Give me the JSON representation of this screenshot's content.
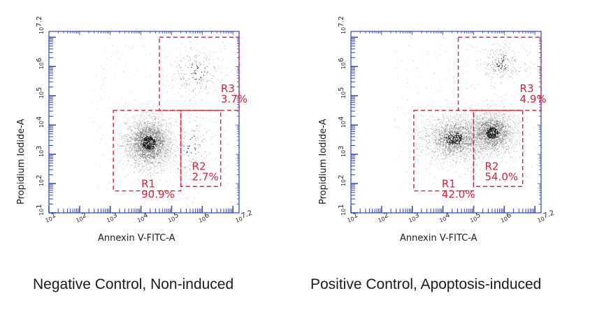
{
  "chart_data": [
    {
      "type": "scatter",
      "caption": "Negative Control, Non-induced",
      "xlabel": "Annexin V-FITC-A",
      "ylabel": "Propidium Iodide-A",
      "xlim": [
        1,
        7.2
      ],
      "ylim": [
        1,
        7.2
      ],
      "x_scale": "log",
      "y_scale": "log",
      "x_ticks": [
        {
          "base": "10",
          "exp": "1"
        },
        {
          "base": "10",
          "exp": "2"
        },
        {
          "base": "10",
          "exp": "3"
        },
        {
          "base": "10",
          "exp": "4"
        },
        {
          "base": "10",
          "exp": "5"
        },
        {
          "base": "10",
          "exp": "6"
        },
        {
          "base": "10",
          "exp": "7.2"
        }
      ],
      "y_ticks": [
        {
          "base": "10",
          "exp": "1"
        },
        {
          "base": "10",
          "exp": "2"
        },
        {
          "base": "10",
          "exp": "3"
        },
        {
          "base": "10",
          "exp": "4"
        },
        {
          "base": "10",
          "exp": "5"
        },
        {
          "base": "10",
          "exp": "6"
        },
        {
          "base": "10",
          "exp": "7.2"
        }
      ],
      "grid": false,
      "point_color": "#6e6e6e",
      "axis_color": "#2a3fd6",
      "gate_color": "#d8203a",
      "gates": [
        {
          "name": "R1",
          "value": "90.9%",
          "x_range": [
            3.1,
            5.3
          ],
          "y_range": [
            1.75,
            4.5
          ]
        },
        {
          "name": "R2",
          "value": "2.7%",
          "x_range": [
            5.3,
            6.6
          ],
          "y_range": [
            1.9,
            4.5
          ]
        },
        {
          "name": "R3",
          "value": "3.7%",
          "x_range": [
            4.6,
            7.2
          ],
          "y_range": [
            4.5,
            7.0
          ]
        }
      ],
      "populations": [
        {
          "cx": 4.25,
          "cy": 3.4,
          "sx": 0.42,
          "sy": 0.45,
          "n": 2600
        },
        {
          "cx": 5.6,
          "cy": 3.3,
          "sx": 0.42,
          "sy": 0.7,
          "n": 200
        },
        {
          "cx": 5.8,
          "cy": 5.8,
          "sx": 0.55,
          "sy": 0.55,
          "n": 240
        }
      ]
    },
    {
      "type": "scatter",
      "caption": "Positive Control, Apoptosis-induced",
      "xlabel": "Annexin V-FITC-A",
      "ylabel": "Propidium Iodide-A",
      "xlim": [
        1,
        7.2
      ],
      "ylim": [
        1,
        7.2
      ],
      "x_scale": "log",
      "y_scale": "log",
      "x_ticks": [
        {
          "base": "10",
          "exp": "1"
        },
        {
          "base": "10",
          "exp": "2"
        },
        {
          "base": "10",
          "exp": "3"
        },
        {
          "base": "10",
          "exp": "4"
        },
        {
          "base": "10",
          "exp": "5"
        },
        {
          "base": "10",
          "exp": "6"
        },
        {
          "base": "10",
          "exp": "7.2"
        }
      ],
      "y_ticks": [
        {
          "base": "10",
          "exp": "1"
        },
        {
          "base": "10",
          "exp": "2"
        },
        {
          "base": "10",
          "exp": "3"
        },
        {
          "base": "10",
          "exp": "4"
        },
        {
          "base": "10",
          "exp": "5"
        },
        {
          "base": "10",
          "exp": "6"
        },
        {
          "base": "10",
          "exp": "7.2"
        }
      ],
      "grid": false,
      "point_color": "#6e6e6e",
      "axis_color": "#2a3fd6",
      "gate_color": "#d8203a",
      "gates": [
        {
          "name": "R1",
          "value": "42.0%",
          "x_range": [
            3.05,
            5.0
          ],
          "y_range": [
            1.75,
            4.5
          ]
        },
        {
          "name": "R2",
          "value": "54.0%",
          "x_range": [
            5.0,
            6.6
          ],
          "y_range": [
            1.9,
            4.5
          ]
        },
        {
          "name": "R3",
          "value": "4.9%",
          "x_range": [
            4.5,
            7.2
          ],
          "y_range": [
            4.5,
            7.0
          ]
        }
      ],
      "populations": [
        {
          "cx": 4.35,
          "cy": 3.55,
          "sx": 0.55,
          "sy": 0.42,
          "n": 1700
        },
        {
          "cx": 5.6,
          "cy": 3.75,
          "sx": 0.4,
          "sy": 0.38,
          "n": 1900
        },
        {
          "cx": 5.9,
          "cy": 6.1,
          "sx": 0.4,
          "sy": 0.4,
          "n": 260
        }
      ]
    }
  ]
}
